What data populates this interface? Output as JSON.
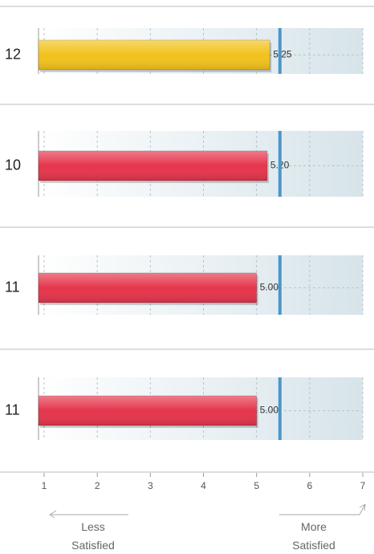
{
  "chart_data": {
    "type": "bar",
    "orientation": "horizontal",
    "categories": [
      "12",
      "10",
      "11",
      "11"
    ],
    "values": [
      5.25,
      5.2,
      5.0,
      5.0
    ],
    "value_labels": [
      "5.25",
      "5.20",
      "5.00",
      "5.00"
    ],
    "colors": [
      "#f2c21b",
      "#e5354c",
      "#e5354c",
      "#e5354c"
    ],
    "reference_line": 5.44,
    "reference_color": "#4b96c8",
    "xlim": [
      1,
      7
    ],
    "xticks": [
      1,
      2,
      3,
      4,
      5,
      6,
      7
    ],
    "grid": true,
    "annotations": [
      "Less\nSatisfied",
      "More\nSatisfied"
    ]
  }
}
